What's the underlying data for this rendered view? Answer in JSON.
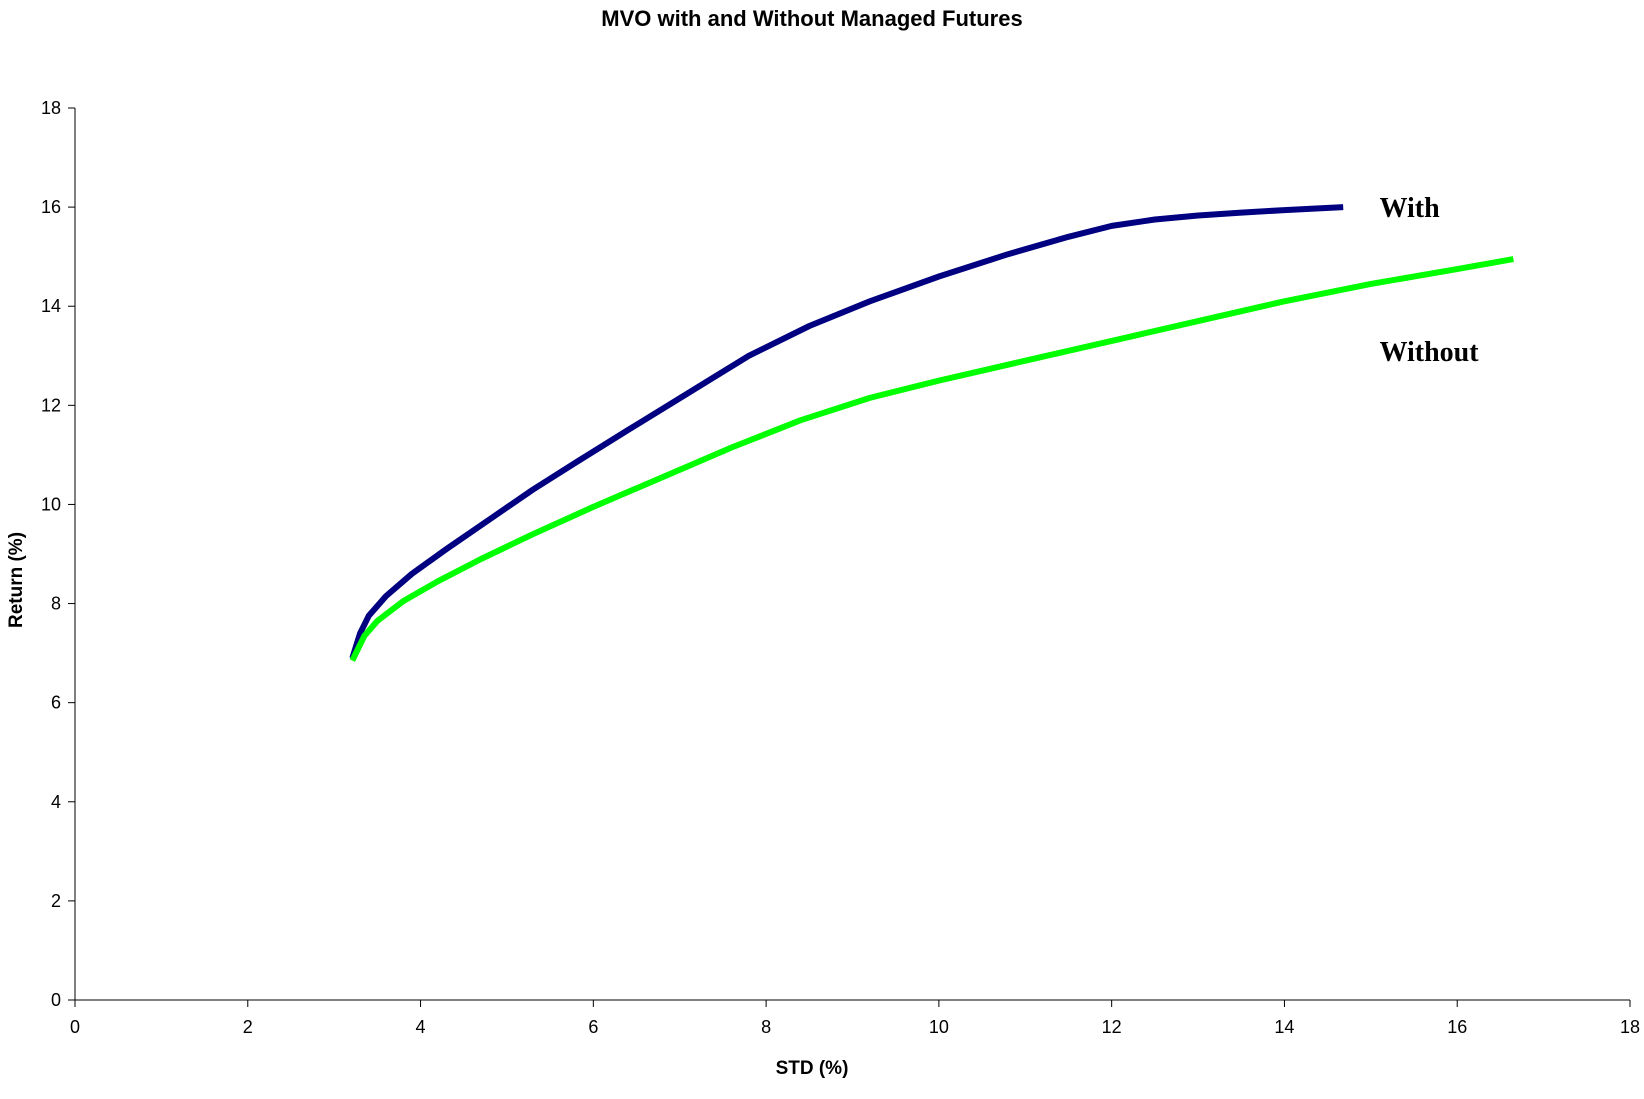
{
  "chart_data": {
    "type": "line",
    "title": "MVO with and Without Managed Futures",
    "xlabel": "STD (%)",
    "ylabel": "Return (%)",
    "xlim": [
      0,
      18
    ],
    "ylim": [
      0,
      18
    ],
    "xticks": [
      0,
      2,
      4,
      6,
      8,
      10,
      12,
      14,
      16,
      18
    ],
    "yticks": [
      0,
      2,
      4,
      6,
      8,
      10,
      12,
      14,
      16,
      18
    ],
    "grid": false,
    "legend": "none",
    "series": [
      {
        "name": "With",
        "color": "#000080",
        "x": [
          3.21,
          3.3,
          3.4,
          3.6,
          3.9,
          4.3,
          4.8,
          5.3,
          5.8,
          6.4,
          7.1,
          7.8,
          8.5,
          9.2,
          10.0,
          10.8,
          11.5,
          12.0,
          12.5,
          13.0,
          13.5,
          14.0,
          14.68
        ],
        "y": [
          6.9,
          7.4,
          7.75,
          8.15,
          8.6,
          9.1,
          9.7,
          10.3,
          10.85,
          11.5,
          12.25,
          13.0,
          13.6,
          14.1,
          14.6,
          15.05,
          15.4,
          15.62,
          15.75,
          15.83,
          15.89,
          15.94,
          16.0
        ]
      },
      {
        "name": "Without",
        "color": "#00ff00",
        "x": [
          3.21,
          3.35,
          3.5,
          3.8,
          4.2,
          4.7,
          5.3,
          6.0,
          6.8,
          7.6,
          8.4,
          9.2,
          10.0,
          11.0,
          12.0,
          13.0,
          14.0,
          15.0,
          16.0,
          16.65
        ],
        "y": [
          6.85,
          7.35,
          7.65,
          8.05,
          8.45,
          8.9,
          9.4,
          9.95,
          10.55,
          11.15,
          11.7,
          12.15,
          12.5,
          12.9,
          13.3,
          13.7,
          14.1,
          14.45,
          14.75,
          14.95
        ]
      }
    ],
    "annotations": [
      {
        "text": "With",
        "series": 0,
        "x": 15.1,
        "y": 16.0
      },
      {
        "text": "Without",
        "series": 1,
        "x": 15.1,
        "y": 13.1
      }
    ]
  }
}
